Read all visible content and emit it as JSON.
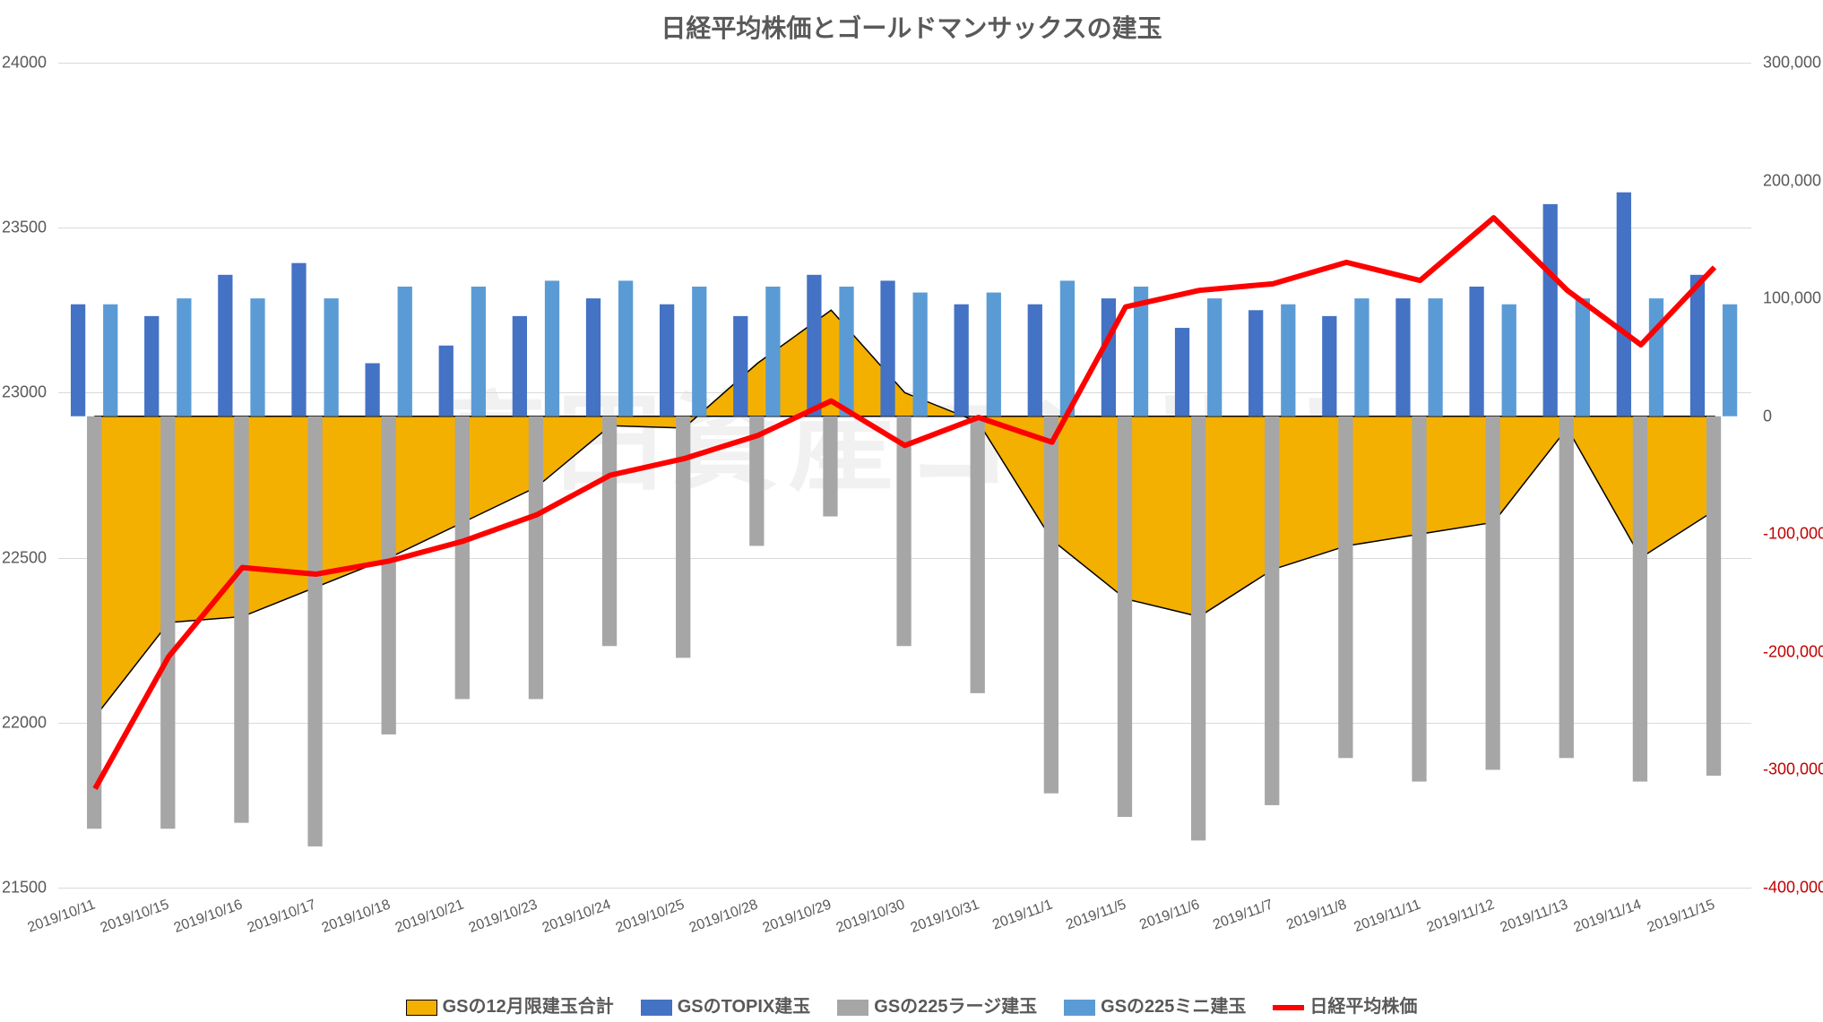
{
  "chart": {
    "type": "combo-bar-area-line",
    "title": "日経平均株価とゴールドマンサックスの建玉",
    "title_fontsize": 28,
    "title_color": "#595959",
    "background_color": "#ffffff",
    "grid_color": "#d9d9d9",
    "watermark": "高田資産コンサル",
    "watermark_color": "rgba(200,200,200,0.25)",
    "categories": [
      "2019/10/11",
      "2019/10/15",
      "2019/10/16",
      "2019/10/17",
      "2019/10/18",
      "2019/10/21",
      "2019/10/23",
      "2019/10/24",
      "2019/10/25",
      "2019/10/28",
      "2019/10/29",
      "2019/10/30",
      "2019/10/31",
      "2019/11/1",
      "2019/11/5",
      "2019/11/6",
      "2019/11/7",
      "2019/11/8",
      "2019/11/11",
      "2019/11/12",
      "2019/11/13",
      "2019/11/14",
      "2019/11/15"
    ],
    "left_axis": {
      "label": null,
      "min": 21500,
      "max": 24000,
      "ticks": [
        21500,
        22000,
        22500,
        23000,
        23500,
        24000
      ],
      "tick_fontsize": 18,
      "tick_color": "#595959"
    },
    "right_axis": {
      "label": null,
      "min": -400000,
      "max": 300000,
      "ticks": [
        -400000,
        -300000,
        -200000,
        -100000,
        0,
        100000,
        200000,
        300000
      ],
      "tick_fontsize": 18,
      "tick_color_positive": "#595959",
      "tick_color_zero": "#595959",
      "tick_color_negative": "#c00000"
    },
    "x_axis": {
      "tick_fontsize": 16,
      "tick_color": "#595959",
      "rotation": -20
    },
    "series": {
      "area_total": {
        "name": "GSの12月限建玉合計",
        "color": "#f4b000",
        "border_color": "#000000",
        "axis": "right",
        "values": [
          -255000,
          -175000,
          -170000,
          -145000,
          -120000,
          -90000,
          -60000,
          -8000,
          -10000,
          45000,
          90000,
          20000,
          -5000,
          -105000,
          -155000,
          -170000,
          -130000,
          -110000,
          -100000,
          -90000,
          -10000,
          -120000,
          -80000
        ]
      },
      "bar_topix": {
        "name": "GSのTOPIX建玉",
        "color": "#4472c4",
        "axis": "right",
        "values": [
          95000,
          85000,
          120000,
          130000,
          45000,
          60000,
          85000,
          100000,
          95000,
          85000,
          120000,
          115000,
          95000,
          95000,
          100000,
          75000,
          90000,
          85000,
          100000,
          110000,
          180000,
          190000,
          120000
        ]
      },
      "bar_225large": {
        "name": "GSの225ラージ建玉",
        "color": "#a6a6a6",
        "axis": "right",
        "values": [
          -350000,
          -350000,
          -345000,
          -365000,
          -270000,
          -240000,
          -240000,
          -195000,
          -205000,
          -110000,
          -85000,
          -195000,
          -235000,
          -320000,
          -340000,
          -360000,
          -330000,
          -290000,
          -310000,
          -300000,
          -290000,
          -310000,
          -305000
        ]
      },
      "bar_225mini": {
        "name": "GSの225ミニ建玉",
        "color": "#5b9bd5",
        "axis": "right",
        "values": [
          95000,
          100000,
          100000,
          100000,
          110000,
          110000,
          115000,
          115000,
          110000,
          110000,
          110000,
          105000,
          105000,
          115000,
          110000,
          100000,
          95000,
          100000,
          100000,
          95000,
          100000,
          100000,
          95000
        ]
      },
      "line_nikkei": {
        "name": "日経平均株価",
        "color": "#ff0000",
        "width": 6,
        "axis": "left",
        "values": [
          21800,
          22200,
          22470,
          22450,
          22490,
          22550,
          22630,
          22750,
          22800,
          22870,
          22975,
          22840,
          22925,
          22850,
          23260,
          23310,
          23330,
          23395,
          23340,
          23530,
          23310,
          23145,
          23380
        ]
      }
    },
    "legend": {
      "fontsize": 20,
      "text_color": "#595959",
      "items": [
        {
          "key": "area_total",
          "swatch": "#f4b000",
          "border": "#000000",
          "label": "GSの12月限建玉合計"
        },
        {
          "key": "bar_topix",
          "swatch": "#4472c4",
          "label": "GSのTOPIX建玉"
        },
        {
          "key": "bar_225large",
          "swatch": "#a6a6a6",
          "label": "GSの225ラージ建玉"
        },
        {
          "key": "bar_225mini",
          "swatch": "#5b9bd5",
          "label": "GSの225ミニ建玉"
        },
        {
          "key": "line_nikkei",
          "line": "#ff0000",
          "label": "日経平均株価"
        }
      ]
    }
  }
}
